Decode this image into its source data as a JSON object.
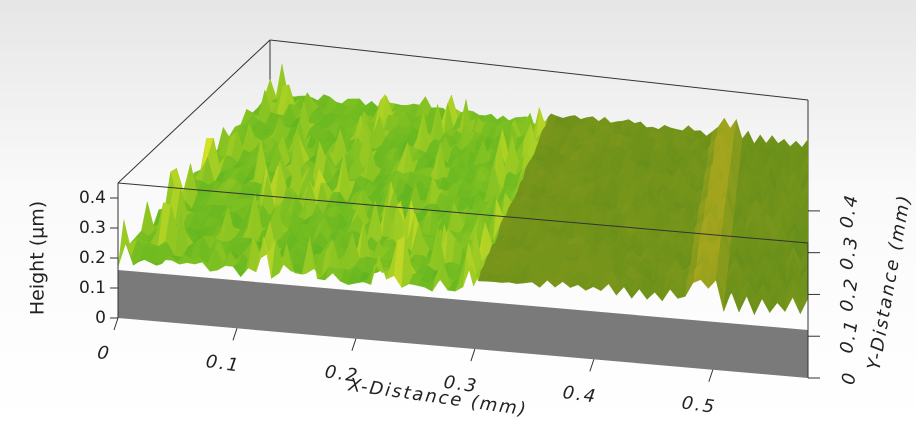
{
  "chart_data": {
    "type": "surface3d",
    "x_label": "X-Distance (mm)",
    "y_label": "Y-Distance (mm)",
    "z_label": "Height (µm)",
    "xlim": [
      0,
      0.58
    ],
    "ylim": [
      0,
      0.45
    ],
    "zlim": [
      0,
      0.45
    ],
    "xticks": [
      0,
      0.1,
      0.2,
      0.3,
      0.4,
      0.5
    ],
    "yticks": [
      0,
      0.1,
      0.2,
      0.3,
      0.4
    ],
    "zticks": [
      0,
      0.1,
      0.2,
      0.3,
      0.4
    ]
  }
}
